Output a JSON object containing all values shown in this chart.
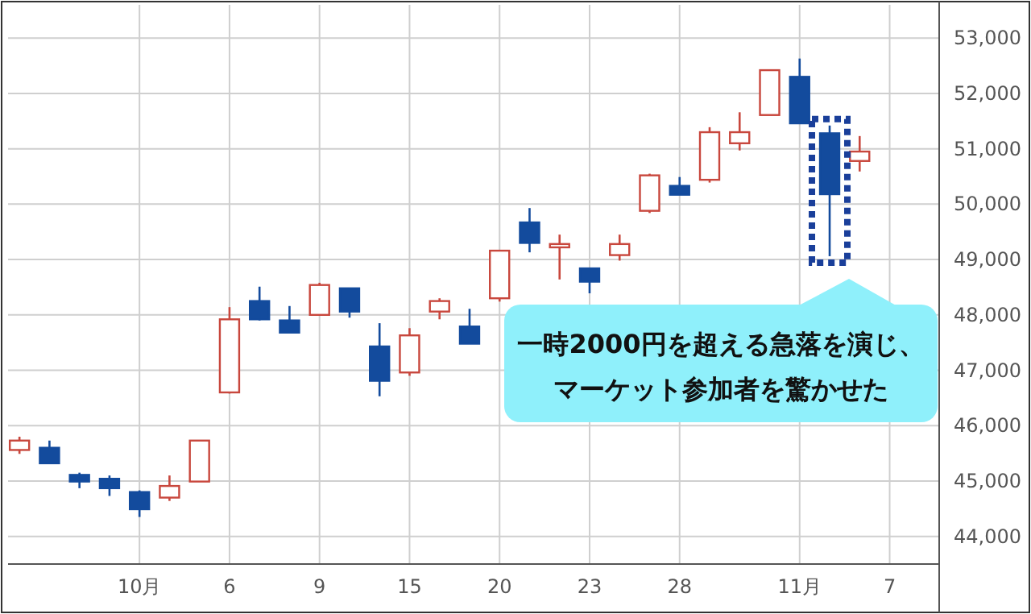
{
  "chart_data": {
    "type": "candlestick",
    "categories": [
      null,
      null,
      null,
      null,
      "10月",
      null,
      null,
      "6",
      null,
      null,
      "9",
      null,
      null,
      "15",
      null,
      null,
      "20",
      null,
      null,
      "23",
      null,
      null,
      "28",
      null,
      null,
      null,
      "11月",
      null,
      null,
      "7",
      null,
      null
    ],
    "ohlc": [
      [
        45560,
        45800,
        45490,
        45730
      ],
      [
        45600,
        45730,
        45320,
        45320
      ],
      [
        45110,
        45150,
        44870,
        44990
      ],
      [
        45040,
        45100,
        44730,
        44870
      ],
      [
        44800,
        44830,
        44350,
        44490
      ],
      [
        44700,
        45100,
        44640,
        44910
      ],
      [
        44990,
        45730,
        44990,
        45730
      ],
      [
        46600,
        48140,
        46580,
        47920
      ],
      [
        48250,
        48510,
        47900,
        47920
      ],
      [
        47900,
        48160,
        47680,
        47680
      ],
      [
        48000,
        48580,
        47990,
        48540
      ],
      [
        48480,
        48480,
        47950,
        48060
      ],
      [
        47430,
        47850,
        46530,
        46810
      ],
      [
        46960,
        47760,
        46900,
        47630
      ],
      [
        48060,
        48300,
        47920,
        48250
      ],
      [
        47790,
        48110,
        47480,
        47480
      ],
      [
        48300,
        49160,
        48240,
        49160
      ],
      [
        49670,
        49930,
        49130,
        49300
      ],
      [
        49220,
        49450,
        48640,
        49280
      ],
      [
        48840,
        48840,
        48390,
        48600
      ],
      [
        49080,
        49450,
        48980,
        49280
      ],
      [
        49880,
        50550,
        49840,
        50520
      ],
      [
        50330,
        50490,
        50170,
        50170
      ],
      [
        50440,
        51390,
        50390,
        51300
      ],
      [
        51100,
        51660,
        50970,
        51300
      ],
      [
        51610,
        52420,
        51610,
        52420
      ],
      [
        52300,
        52630,
        51460,
        51460
      ],
      [
        51280,
        51420,
        49060,
        50180
      ],
      [
        50780,
        51230,
        50590,
        50950
      ],
      null,
      null,
      null
    ],
    "colors": [
      "#c8473d",
      "#134b9d",
      "#134b9d",
      "#134b9d",
      "#134b9d",
      "#c8473d",
      "#c8473d",
      "#c8473d",
      "#134b9d",
      "#134b9d",
      "#c8473d",
      "#134b9d",
      "#134b9d",
      "#c8473d",
      "#c8473d",
      "#134b9d",
      "#c8473d",
      "#134b9d",
      "#c8473d",
      "#134b9d",
      "#c8473d",
      "#c8473d",
      "#134b9d",
      "#c8473d",
      "#c8473d",
      "#c8473d",
      "#134b9d",
      "#134b9d",
      "#c8473d",
      null,
      null,
      null
    ],
    "ylim": [
      43500,
      53600
    ],
    "yticks": [
      {
        "value": 44000,
        "label": "44,000"
      },
      {
        "value": 45000,
        "label": "45,000"
      },
      {
        "value": 46000,
        "label": "46,000"
      },
      {
        "value": 47000,
        "label": "47,000"
      },
      {
        "value": 48000,
        "label": "48,000"
      },
      {
        "value": 49000,
        "label": "49,000"
      },
      {
        "value": 50000,
        "label": "50,000"
      },
      {
        "value": 51000,
        "label": "51,000"
      },
      {
        "value": 52000,
        "label": "52,000"
      },
      {
        "value": 53000,
        "label": "53,000"
      }
    ],
    "grid": true,
    "annotations": [
      "一時2000円を超える急落を演じ、",
      "マーケット参加者を驚かせた"
    ]
  }
}
